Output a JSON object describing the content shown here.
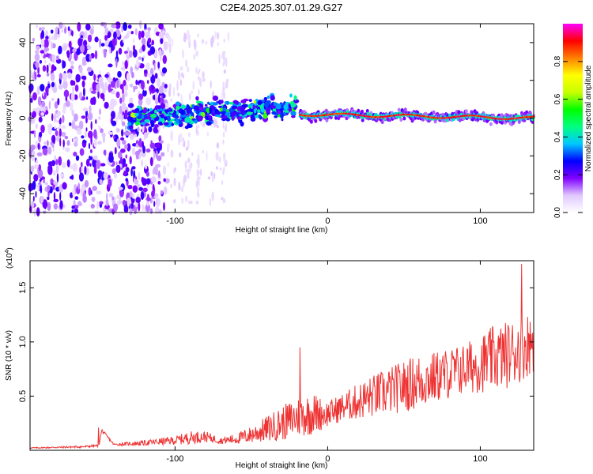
{
  "title": "C2E4.2025.307.01.29.G27",
  "chart_data": [
    {
      "type": "heatmap",
      "name": "spectrogram",
      "xlabel": "Height of straight line (km)",
      "ylabel": "Frequency (Hz)",
      "xlim": [
        -195,
        135
      ],
      "ylim": [
        -50,
        50
      ],
      "xticks": [
        -100,
        0,
        100
      ],
      "yticks": [
        -40,
        -20,
        0,
        20,
        40
      ],
      "colorbar": {
        "label": "Normalized spectral amplitude",
        "range": [
          0,
          1
        ],
        "ticks": [
          0.0,
          0.2,
          0.4,
          0.6,
          0.8
        ],
        "tick_labels": [
          "0.0",
          "0.2",
          "0.4",
          "0.6",
          "0.8"
        ],
        "colors": [
          "#ffffff",
          "#e0c8ff",
          "#8000ff",
          "#0000ff",
          "#00c8ff",
          "#00ff80",
          "#00ff00",
          "#c8ff00",
          "#ffff00",
          "#ff8000",
          "#ff0000",
          "#ff00ff"
        ]
      },
      "features": {
        "noise_region_x": [
          -195,
          -105
        ],
        "sparse_noise_x": [
          -105,
          -65
        ],
        "scatter_band": {
          "x": [
            -130,
            -20
          ],
          "center_hz": [
            0,
            6
          ],
          "halfwidth_hz": 8
        },
        "signal_track": {
          "x": [
            -18,
            135
          ],
          "center_hz": [
            2,
            0
          ],
          "peak_amplitude": 0.97
        }
      }
    },
    {
      "type": "line",
      "name": "snr",
      "xlabel": "Height of straight line (km)",
      "ylabel": "SNR (10 * v/v)",
      "scale_label": "(x10",
      "scale_exponent": "4",
      "xlim": [
        -195,
        135
      ],
      "ylim": [
        0,
        1.75
      ],
      "xticks": [
        -100,
        0,
        100
      ],
      "yticks": [
        0.5,
        1.0,
        1.5
      ],
      "ytick_labels": [
        "0.5",
        "1.0",
        "1.5"
      ],
      "color": "#ee3333",
      "envelope": {
        "x": [
          -195,
          -160,
          -150,
          -148,
          -140,
          -120,
          -100,
          -90,
          -80,
          -70,
          -60,
          -50,
          -40,
          -30,
          -20,
          -10,
          0,
          10,
          20,
          30,
          40,
          50,
          60,
          70,
          80,
          90,
          100,
          110,
          120,
          130,
          135
        ],
        "base": [
          0.02,
          0.03,
          0.04,
          0.18,
          0.05,
          0.06,
          0.08,
          0.1,
          0.11,
          0.08,
          0.09,
          0.12,
          0.16,
          0.2,
          0.25,
          0.28,
          0.3,
          0.36,
          0.4,
          0.44,
          0.48,
          0.52,
          0.56,
          0.6,
          0.64,
          0.68,
          0.72,
          0.76,
          0.8,
          0.88,
          0.92
        ],
        "spread": [
          0.01,
          0.02,
          0.02,
          0.03,
          0.02,
          0.05,
          0.08,
          0.12,
          0.1,
          0.06,
          0.1,
          0.16,
          0.24,
          0.32,
          0.38,
          0.4,
          0.24,
          0.26,
          0.34,
          0.4,
          0.44,
          0.48,
          0.52,
          0.48,
          0.48,
          0.48,
          0.54,
          0.62,
          0.62,
          0.62,
          0.55
        ]
      },
      "notable_points": [
        {
          "x": -150,
          "y": 0.21
        },
        {
          "x": -18,
          "y": 0.95
        },
        {
          "x": 127,
          "y": 1.72
        }
      ]
    }
  ]
}
